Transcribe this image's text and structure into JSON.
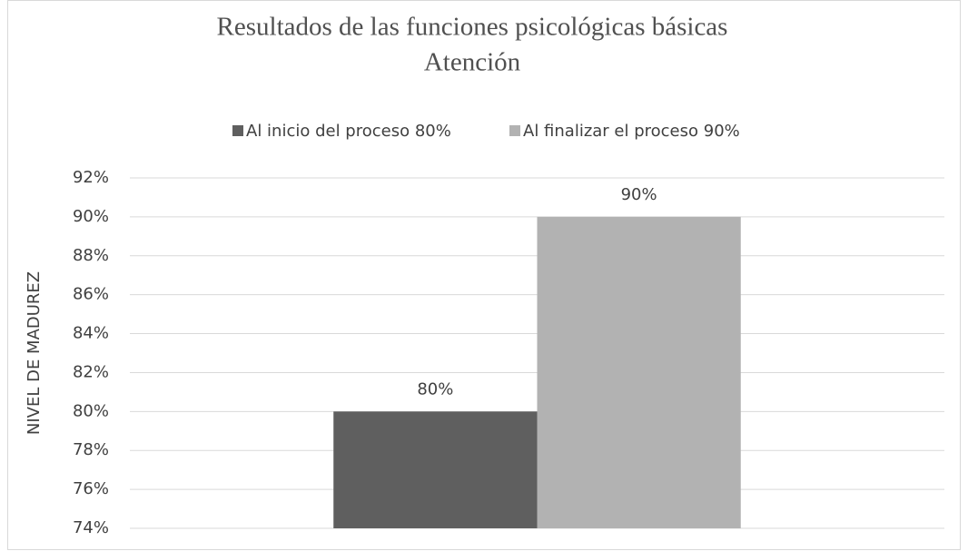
{
  "chart_data": {
    "type": "bar",
    "title": "Resultados de las funciones psicológicas básicas",
    "subtitle": "Atención",
    "y_label": "NIVEL DE MADUREZ",
    "categories": [
      null
    ],
    "series": [
      {
        "name": "Al inicio del proceso 80%",
        "color": "#5f5f5f",
        "values": [
          80
        ],
        "value_labels": [
          "80%"
        ]
      },
      {
        "name": "Al finalizar el proceso 90%",
        "color": "#b2b2b2",
        "values": [
          90
        ],
        "value_labels": [
          "90%"
        ]
      }
    ],
    "ylim": [
      74,
      92
    ],
    "yticks": [
      {
        "value": 74,
        "label": "74%"
      },
      {
        "value": 76,
        "label": "76%"
      },
      {
        "value": 78,
        "label": "78%"
      },
      {
        "value": 80,
        "label": "80%"
      },
      {
        "value": 82,
        "label": "82%"
      },
      {
        "value": 84,
        "label": "84%"
      },
      {
        "value": 86,
        "label": "86%"
      },
      {
        "value": 88,
        "label": "88%"
      },
      {
        "value": 90,
        "label": "90%"
      },
      {
        "value": 92,
        "label": "92%"
      }
    ],
    "grid": true,
    "legend": "top"
  }
}
